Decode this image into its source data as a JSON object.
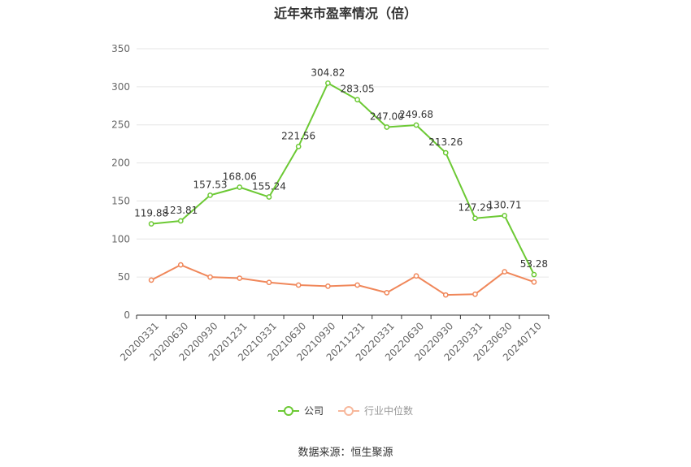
{
  "page": {
    "title": "近年来市盈率情况（倍）",
    "source": "数据来源：恒生聚源"
  },
  "legend": {
    "company_label": "公司",
    "industry_label": "行业中位数"
  },
  "colors": {
    "company": "#6cc934",
    "industry": "#f0875a",
    "grid": "#e6e6e6",
    "axis": "#333333"
  },
  "chart_data": {
    "type": "line",
    "title": "近年来市盈率情况（倍）",
    "xlabel": "",
    "ylabel": "",
    "ylim": [
      0,
      350
    ],
    "yticks": [
      0,
      50,
      100,
      150,
      200,
      250,
      300,
      350
    ],
    "grid": true,
    "legend_position": "bottom",
    "categories": [
      "20200331",
      "20200630",
      "20200930",
      "20201231",
      "20210331",
      "20210630",
      "20210930",
      "20211231",
      "20220331",
      "20220630",
      "20220930",
      "20230331",
      "20230630",
      "20240710"
    ],
    "series": [
      {
        "name": "公司",
        "values": [
          119.88,
          123.81,
          157.53,
          168.06,
          155.24,
          221.56,
          304.82,
          283.05,
          247.0,
          249.68,
          213.26,
          127.29,
          130.71,
          53.28
        ],
        "labels": [
          "119.88",
          "123.81",
          "157.53",
          "168.06",
          "155.24",
          "221.56",
          "304.82",
          "283.05",
          "247.00",
          "249.68",
          "213.26",
          "127.29",
          "130.71",
          "53.28"
        ]
      },
      {
        "name": "行业中位数",
        "values": [
          46,
          66,
          50,
          48.5,
          43,
          39.5,
          38,
          39.5,
          29.5,
          51.5,
          26.5,
          27.5,
          57,
          43.5
        ]
      }
    ]
  }
}
